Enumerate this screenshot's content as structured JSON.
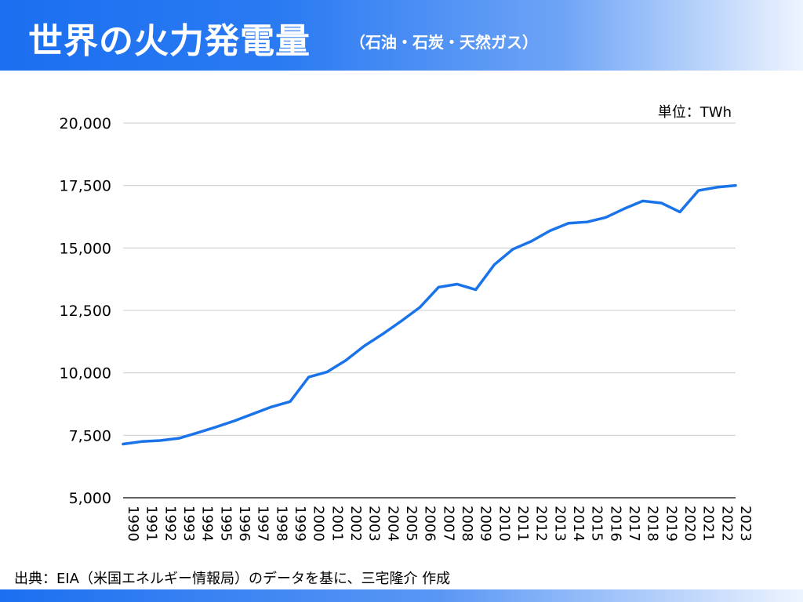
{
  "header": {
    "title": "世界の火力発電量",
    "subtitle": "（石油・石炭・天然ガス）"
  },
  "footer": {
    "source": "出典：EIA（米国エネルギー情報局）のデータを基に、三宅隆介 作成"
  },
  "colors": {
    "accent": "#1a73e8",
    "grid": "#cccccc"
  },
  "chart_data": {
    "type": "line",
    "unit_label": "単位：TWh",
    "ylim": [
      5000,
      20000
    ],
    "yticks": [
      5000,
      7500,
      10000,
      12500,
      15000,
      17500,
      20000
    ],
    "ytick_labels": [
      "5,000",
      "7,500",
      "10,000",
      "12,500",
      "15,000",
      "17,500",
      "20,000"
    ],
    "grid": true,
    "categories": [
      "1990",
      "1991",
      "1992",
      "1993",
      "1994",
      "1995",
      "1996",
      "1997",
      "1998",
      "1999",
      "2000",
      "2001",
      "2002",
      "2003",
      "2004",
      "2005",
      "2006",
      "2007",
      "2008",
      "2009",
      "2010",
      "2011",
      "2012",
      "2013",
      "2014",
      "2015",
      "2016",
      "2017",
      "2018",
      "2019",
      "2020",
      "2021",
      "2022",
      "2023"
    ],
    "series": [
      {
        "values": [
          7150,
          7250,
          7290,
          7380,
          7600,
          7830,
          8080,
          8360,
          8640,
          8850,
          9830,
          10040,
          10500,
          11080,
          11560,
          12080,
          12630,
          13430,
          13550,
          13330,
          14330,
          14950,
          15270,
          15690,
          15990,
          16040,
          16220,
          16570,
          16880,
          16800,
          16440,
          17300,
          17430,
          17500
        ],
        "color": "#1a73e8"
      }
    ]
  }
}
